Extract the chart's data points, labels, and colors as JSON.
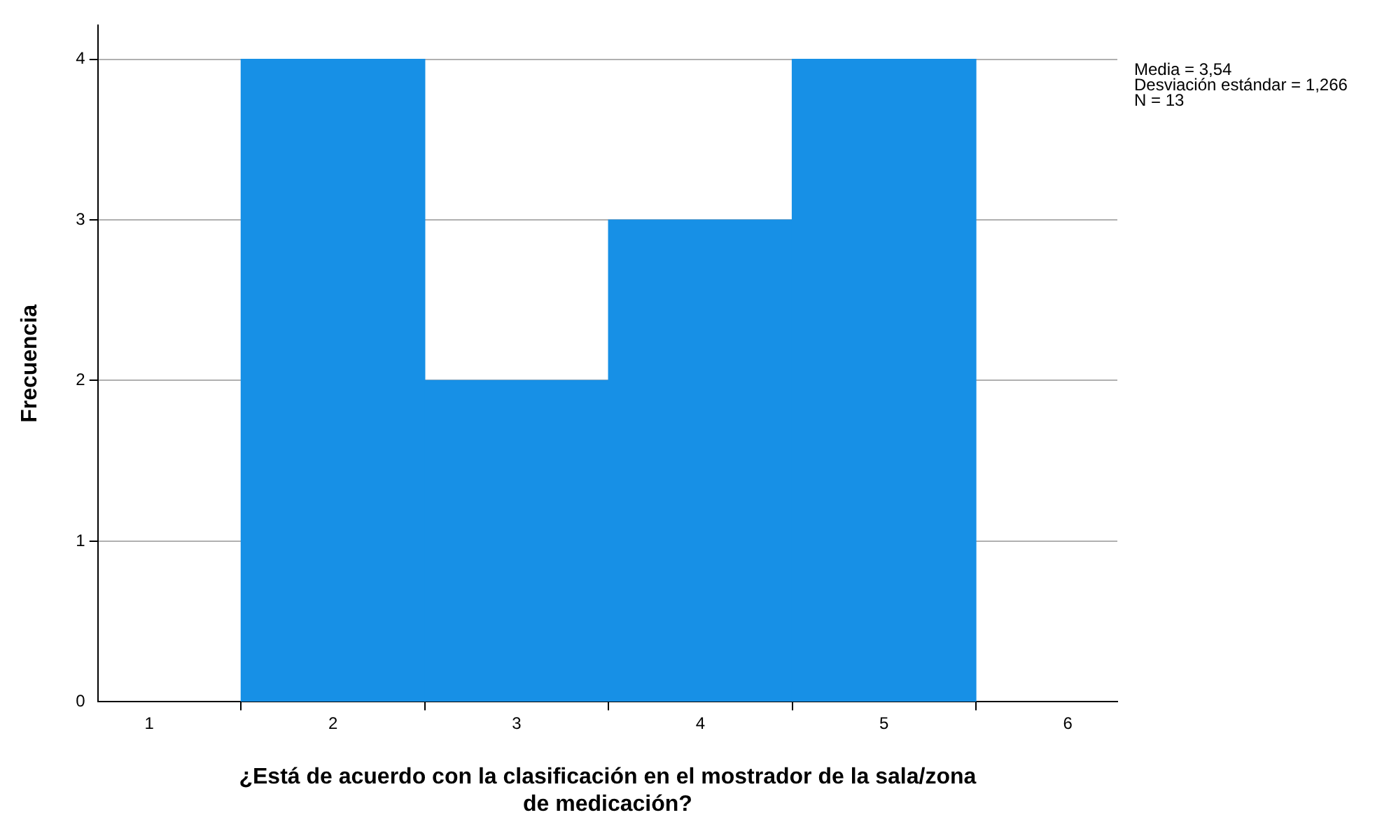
{
  "chart_data": {
    "type": "histogram",
    "xlabel": "¿Está de acuerdo con la clasificación en el mostrador de la sala/zona de medicación?",
    "ylabel": "Frecuencia",
    "bins": [
      1.5,
      2.5,
      3.5,
      4.5,
      5.5
    ],
    "values": [
      4,
      2,
      3,
      4
    ],
    "color": "#1790e6",
    "xlim": [
      0.72,
      6.27
    ],
    "xticks": [
      1,
      2,
      3,
      4,
      5,
      6
    ],
    "ylim": [
      0,
      4.21
    ],
    "yticks": [
      0,
      1,
      2,
      3,
      4
    ],
    "grid": "y",
    "annotations": [
      "Media = 3,54",
      "Desviación estándar = 1,266",
      "N = 13"
    ]
  }
}
